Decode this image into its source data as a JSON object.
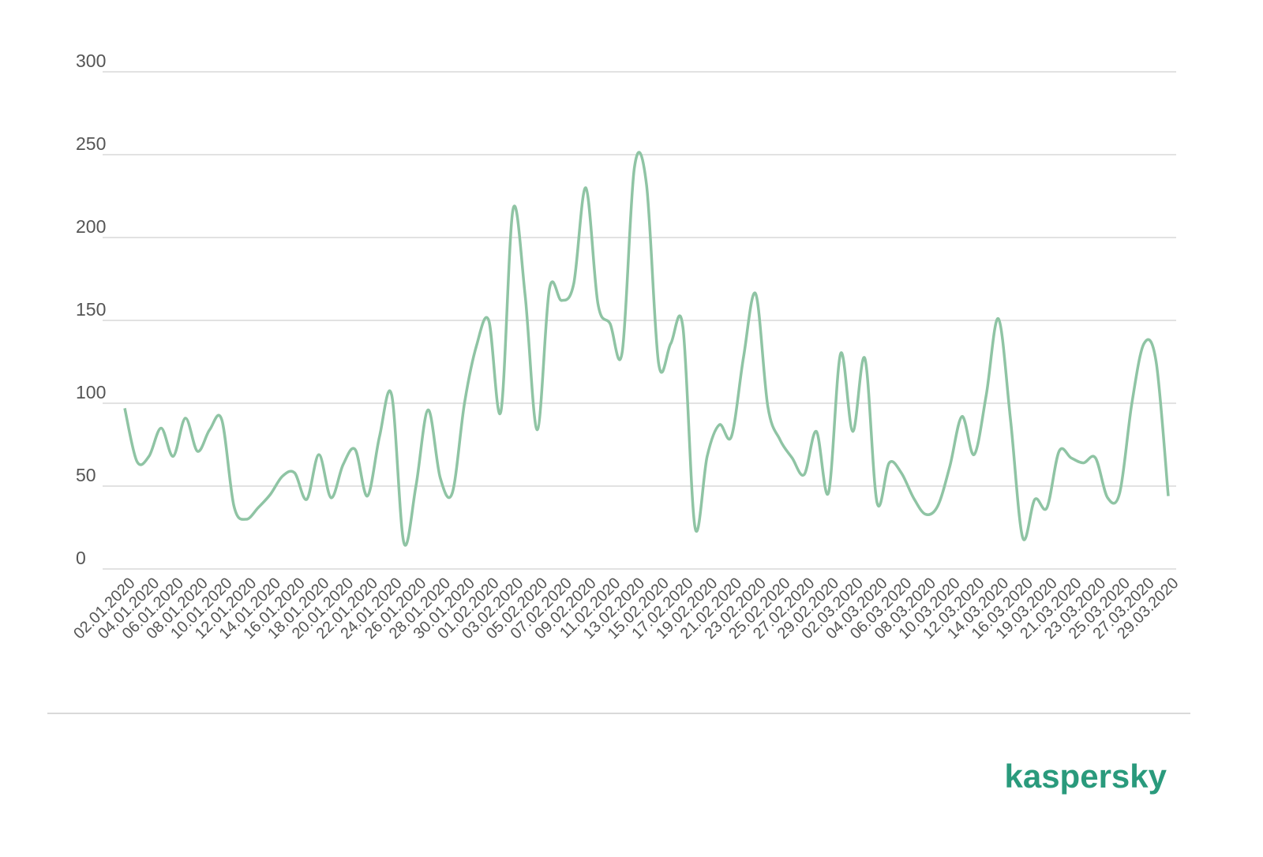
{
  "chart_data": {
    "type": "line",
    "categories": [
      "02.01.2020",
      null,
      "04.01.2020",
      null,
      "06.01.2020",
      null,
      "08.01.2020",
      null,
      "10.01.2020",
      null,
      "12.01.2020",
      null,
      "14.01.2020",
      null,
      "16.01.2020",
      null,
      "18.01.2020",
      null,
      "20.01.2020",
      null,
      "22.01.2020",
      null,
      "24.01.2020",
      null,
      "26.01.2020",
      null,
      "28.01.2020",
      null,
      "30.01.2020",
      null,
      "01.02.2020",
      null,
      "03.02.2020",
      null,
      "05.02.2020",
      null,
      "07.02.2020",
      null,
      "09.02.2020",
      null,
      "11.02.2020",
      null,
      "13.02.2020",
      null,
      "15.02.2020",
      null,
      "17.02.2020",
      null,
      "19.02.2020",
      null,
      "21.02.2020",
      null,
      "23.02.2020",
      null,
      "25.02.2020",
      null,
      "27.02.2020",
      null,
      "29.02.2020",
      null,
      "02.03.2020",
      null,
      "04.03.2020",
      null,
      "06.03.2020",
      null,
      "08.03.2020",
      null,
      "10.03.2020",
      null,
      "12.03.2020",
      null,
      "14.03.2020",
      null,
      "16.03.2020",
      null,
      "19.03.2020",
      null,
      "21.03.2020",
      null,
      "23.03.2020",
      null,
      "25.03.2020",
      null,
      "27.03.2020",
      null,
      "29.03.2020"
    ],
    "series": [
      {
        "color": "#8fc4a4",
        "values": [
          97,
          65,
          68,
          85,
          68,
          91,
          71,
          84,
          90,
          38,
          30,
          37,
          45,
          56,
          58,
          42,
          69,
          43,
          63,
          72,
          44,
          80,
          105,
          16,
          50,
          96,
          55,
          46,
          100,
          135,
          150,
          95,
          217,
          165,
          84,
          169,
          162,
          172,
          230,
          160,
          148,
          131,
          242,
          232,
          124,
          136,
          146,
          25,
          68,
          87,
          80,
          128,
          166,
          98,
          78,
          67,
          57,
          83,
          46,
          130,
          83,
          127,
          40,
          64,
          58,
          43,
          33,
          38,
          62,
          92,
          69,
          105,
          151,
          90,
          19,
          42,
          37,
          71,
          67,
          64,
          67,
          43,
          46,
          100,
          136,
          125,
          44
        ]
      }
    ],
    "ylim": [
      0,
      300
    ],
    "yticks": [
      0,
      50,
      100,
      150,
      200,
      250,
      300
    ],
    "grid": true
  },
  "logo": "kaspersky"
}
